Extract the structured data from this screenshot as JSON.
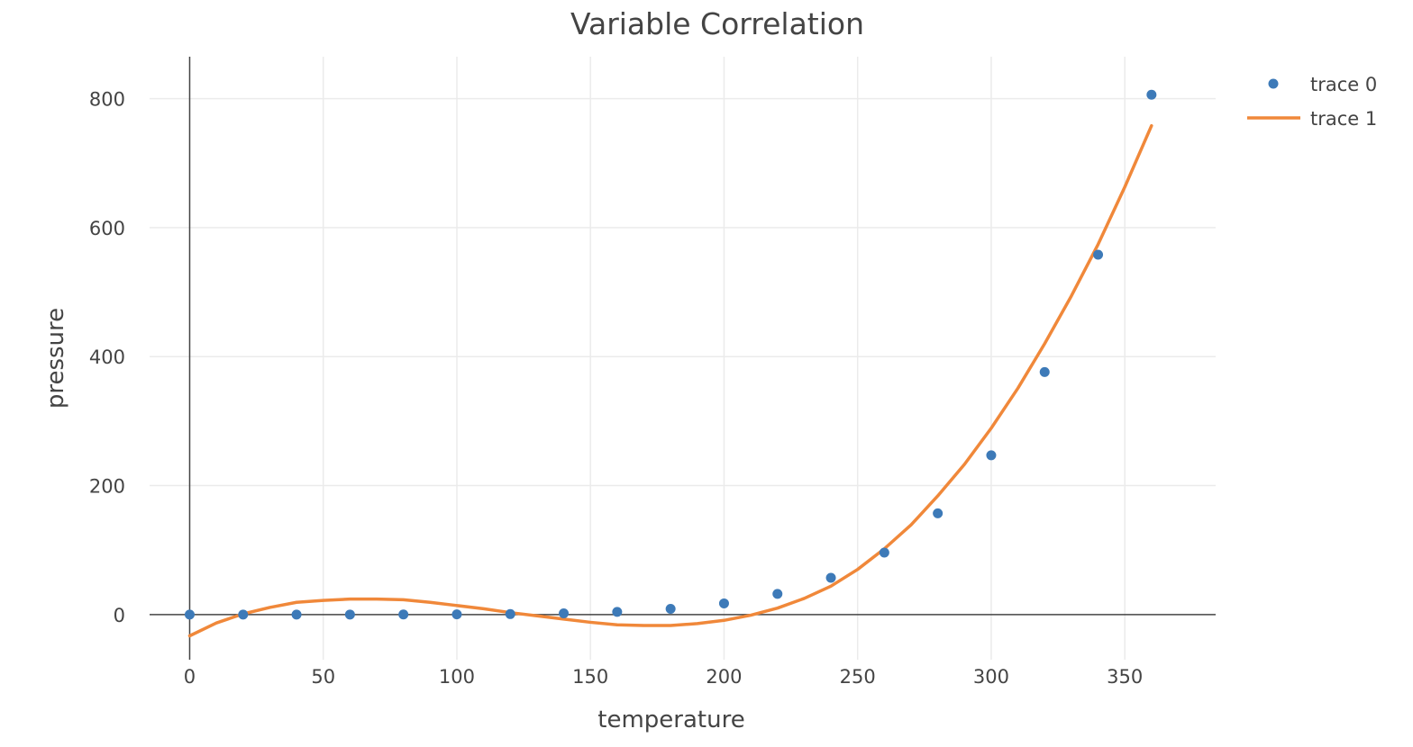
{
  "chart_data": {
    "type": "scatter",
    "title": "Variable Correlation",
    "xlabel": "temperature",
    "ylabel": "pressure",
    "xlim": [
      -15,
      384
    ],
    "ylim": [
      -70,
      865
    ],
    "xticks": [
      0,
      50,
      100,
      150,
      200,
      250,
      300,
      350
    ],
    "yticks": [
      0,
      200,
      400,
      600,
      800
    ],
    "grid": true,
    "legend_position": "top-right",
    "series": [
      {
        "name": "trace 0",
        "mode": "markers",
        "color": "#3d7ab8",
        "x": [
          0,
          20,
          40,
          60,
          80,
          100,
          120,
          140,
          160,
          180,
          200,
          220,
          240,
          260,
          280,
          300,
          320,
          340,
          360
        ],
        "y": [
          0.0002,
          0.0012,
          0.006,
          0.03,
          0.09,
          0.27,
          0.75,
          1.85,
          4.2,
          8.8,
          17.3,
          32.1,
          57.0,
          96.0,
          157.0,
          247.0,
          376.0,
          558.0,
          806.0
        ]
      },
      {
        "name": "trace 1",
        "mode": "lines",
        "color": "#f0883a",
        "x": [
          0,
          10,
          20,
          30,
          40,
          50,
          60,
          70,
          80,
          90,
          100,
          110,
          120,
          130,
          140,
          150,
          160,
          170,
          180,
          190,
          200,
          210,
          220,
          230,
          240,
          250,
          260,
          270,
          280,
          290,
          300,
          310,
          320,
          330,
          340,
          350,
          360
        ],
        "y": [
          -33,
          -13,
          1,
          11,
          19,
          22,
          24,
          24,
          23,
          19,
          14,
          9,
          3,
          -2,
          -7,
          -12,
          -16,
          -17,
          -17,
          -14,
          -9,
          -1,
          10,
          25,
          44,
          70,
          102,
          139,
          184,
          233,
          289,
          351,
          420,
          494,
          574,
          663,
          758
        ]
      }
    ]
  }
}
